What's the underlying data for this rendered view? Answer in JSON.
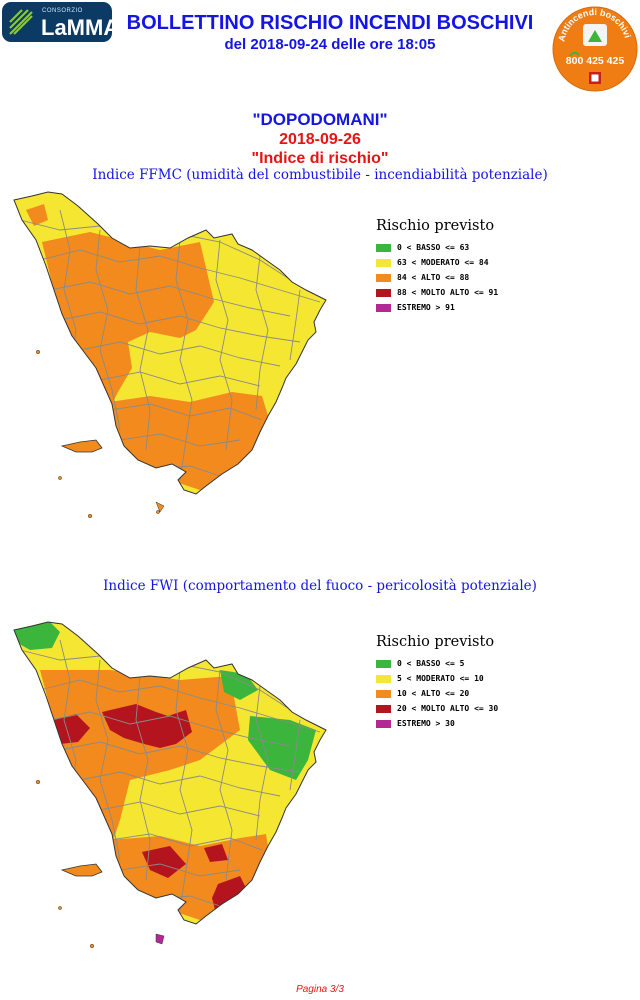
{
  "logo": {
    "small": "CONSORZIO",
    "name": "LaMMA"
  },
  "header": {
    "title": "BOLLETTINO RISCHIO INCENDI BOSCHIVI",
    "subtitle": "del 2018-09-24 delle ore 18:05"
  },
  "badge": {
    "text": "Antincendi boschivi",
    "phone": "800 425 425"
  },
  "forecast": {
    "day": "\"DOPODOMANI\"",
    "date": "2018-09-26",
    "index_label": "\"Indice di rischio\""
  },
  "ffmc": {
    "title": "Indice FFMC (umidità del combustibile - incendiabilità potenziale)",
    "legend_title": "Rischio previsto",
    "legend": [
      {
        "label": "0 < BASSO <= 63",
        "color": "#3cb53c"
      },
      {
        "label": "63 < MODERATO <= 84",
        "color": "#f5e632"
      },
      {
        "label": "84 < ALTO <= 88",
        "color": "#f28a1e"
      },
      {
        "label": "88 < MOLTO ALTO <= 91",
        "color": "#b4141e"
      },
      {
        "label": "ESTREMO > 91",
        "color": "#b42896"
      }
    ]
  },
  "fwi": {
    "title": "Indice FWI (comportamento del fuoco - pericolosità potenziale)",
    "legend_title": "Rischio previsto",
    "legend": [
      {
        "label": "0 < BASSO <= 5",
        "color": "#3cb53c"
      },
      {
        "label": "5 < MODERATO <= 10",
        "color": "#f5e632"
      },
      {
        "label": "10 < ALTO <= 20",
        "color": "#f28a1e"
      },
      {
        "label": "20 < MOLTO ALTO <= 30",
        "color": "#b4141e"
      },
      {
        "label": "ESTREMO > 30",
        "color": "#b42896"
      }
    ]
  },
  "footer": {
    "page": "Pagina 3/3"
  }
}
